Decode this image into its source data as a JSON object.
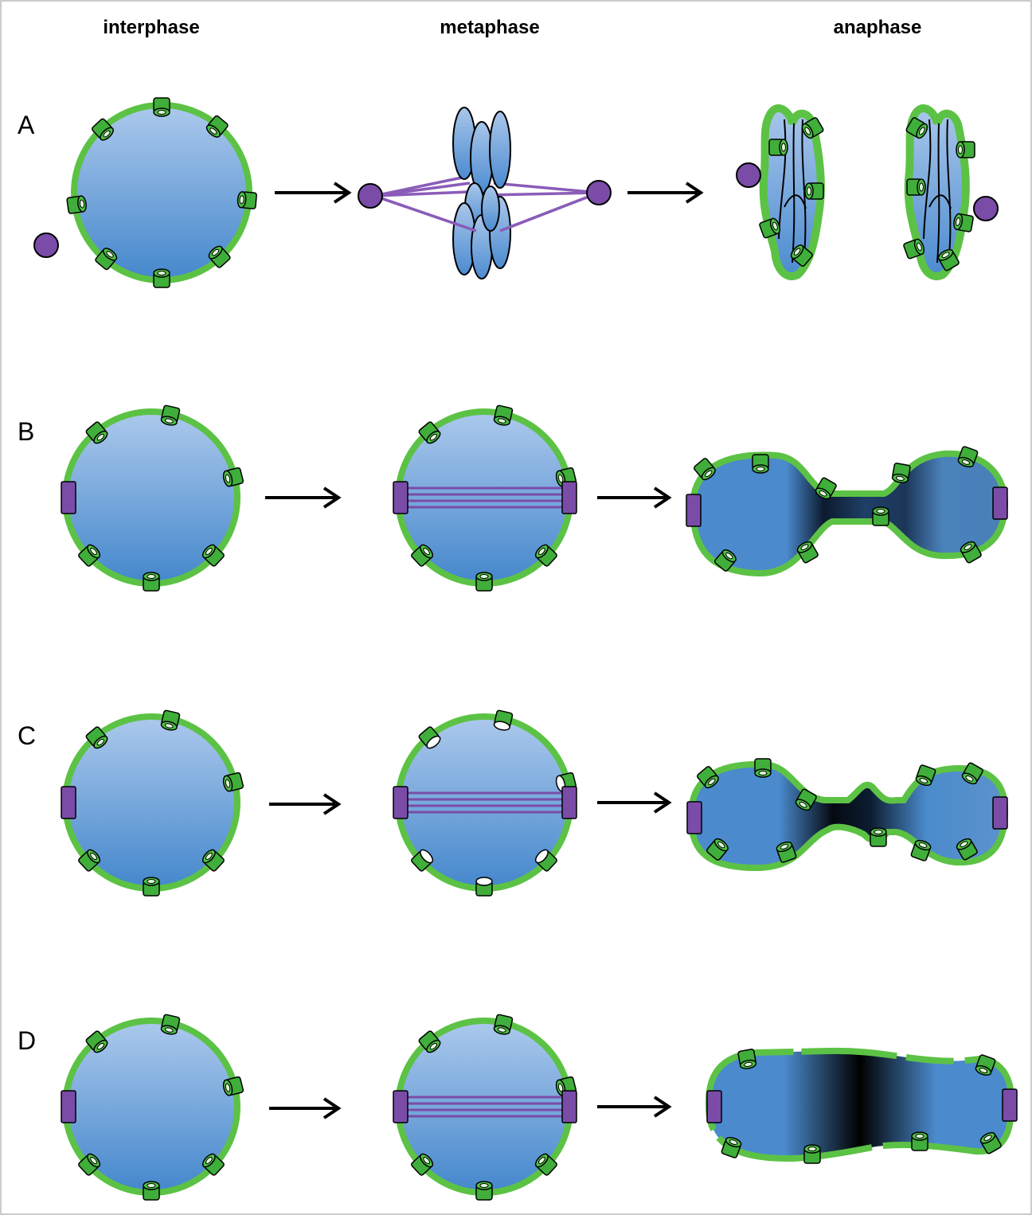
{
  "columns": [
    "interphase",
    "metaphase",
    "anaphase"
  ],
  "rows": [
    "A",
    "B",
    "C",
    "D"
  ]
}
